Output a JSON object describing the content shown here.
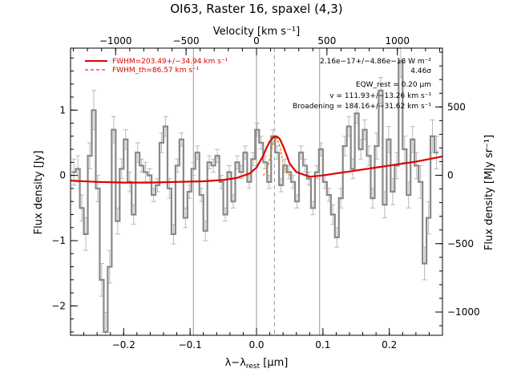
{
  "chart_data": {
    "type": "line",
    "title": "OI63, Raster 16, spaxel (4,3)",
    "xlabel": "λ−λ_rest [μm]",
    "xlabel_main": "λ−λ",
    "xlabel_sub": "rest",
    "xlabel_unit": " [μm]",
    "ylabel": "Flux density [Jy]",
    "x2label": "Velocity [km s⁻¹]",
    "y2label": "Flux density [MJy sr⁻¹]",
    "xlim": [
      -0.28,
      0.28
    ],
    "ylim": [
      -2.45,
      1.95
    ],
    "x2lim": [
      -1320,
      1320
    ],
    "y2lim": [
      -1170,
      930
    ],
    "xticks": [
      -0.2,
      -0.1,
      0.0,
      0.1,
      0.2
    ],
    "xtick_labels": [
      "−0.2",
      "−0.1",
      "0.0",
      "0.1",
      "0.2"
    ],
    "yticks": [
      -2,
      -1,
      0,
      1
    ],
    "ytick_labels": [
      "−2",
      "−1",
      "0",
      "1"
    ],
    "x2ticks": [
      -1000,
      -500,
      0,
      500,
      1000
    ],
    "x2tick_labels": [
      "−1000",
      "−500",
      "0",
      "500",
      "1000"
    ],
    "y2ticks": [
      -1000,
      -500,
      0,
      500
    ],
    "y2tick_labels": [
      "−1000",
      "−500",
      "0",
      "500"
    ],
    "vlines_solid": [
      -0.095,
      0.0,
      0.095
    ],
    "vline_dashed": 0.027,
    "legend": {
      "position": "top-left",
      "entries": [
        {
          "label": "FWHM=203.49+/−34.94 km s⁻¹",
          "color": "#dd0000",
          "style": "solid"
        },
        {
          "label": "FWHM_th=86.57 km s⁻¹",
          "color": "#dd0000",
          "style": "dashed"
        }
      ]
    },
    "annotations": [
      "2.16e−17+/−4.86e−18 W m⁻²",
      "4.46σ",
      "EQW_rest = 0.20 μm",
      "v = 111.93+/−13.26 km s⁻¹",
      "Broadening = 184.16+/−31.62 km s⁻¹"
    ],
    "series": [
      {
        "style": "steps",
        "color": "#888888",
        "x": [
          -0.275,
          -0.269,
          -0.263,
          -0.257,
          -0.251,
          -0.245,
          -0.239,
          -0.233,
          -0.227,
          -0.221,
          -0.215,
          -0.209,
          -0.203,
          -0.197,
          -0.191,
          -0.185,
          -0.179,
          -0.173,
          -0.167,
          -0.161,
          -0.155,
          -0.149,
          -0.143,
          -0.137,
          -0.131,
          -0.125,
          -0.119,
          -0.113,
          -0.107,
          -0.101,
          -0.095,
          -0.089,
          -0.083,
          -0.077,
          -0.071,
          -0.065,
          -0.059,
          -0.053,
          -0.047,
          -0.041,
          -0.035,
          -0.029,
          -0.023,
          -0.017,
          -0.011,
          -0.005,
          0.001,
          0.007,
          0.013,
          0.019,
          0.025,
          0.031,
          0.037,
          0.043,
          0.049,
          0.055,
          0.061,
          0.067,
          0.073,
          0.079,
          0.085,
          0.091,
          0.097,
          0.103,
          0.109,
          0.115,
          0.121,
          0.127,
          0.133,
          0.139,
          0.145,
          0.151,
          0.157,
          0.163,
          0.169,
          0.175,
          0.181,
          0.187,
          0.193,
          0.199,
          0.205,
          0.211,
          0.217,
          0.223,
          0.229,
          0.235,
          0.241,
          0.247,
          0.253,
          0.259,
          0.265,
          0.271
        ],
        "values": [
          0.05,
          0.1,
          -0.5,
          -0.9,
          0.3,
          1.0,
          -0.2,
          -1.6,
          -2.4,
          -1.4,
          0.7,
          -0.7,
          0.1,
          0.55,
          -0.1,
          -0.6,
          0.35,
          0.15,
          0.05,
          0.0,
          -0.3,
          -0.15,
          0.5,
          0.75,
          -0.2,
          -0.9,
          0.15,
          0.55,
          -0.65,
          -0.25,
          0.1,
          0.35,
          -0.3,
          -0.85,
          0.2,
          0.15,
          0.3,
          -0.1,
          -0.6,
          0.05,
          -0.4,
          0.2,
          0.05,
          0.35,
          -0.1,
          0.25,
          0.7,
          0.5,
          0.2,
          -0.1,
          0.6,
          0.35,
          -0.15,
          0.15,
          0.05,
          -0.1,
          -0.4,
          0.35,
          0.15,
          -0.05,
          -0.5,
          0.05,
          0.4,
          -0.1,
          -0.3,
          -0.6,
          -0.95,
          -0.35,
          0.45,
          0.75,
          0.1,
          0.95,
          0.4,
          0.7,
          0.3,
          -0.35,
          0.45,
          1.3,
          -0.45,
          0.55,
          -0.25,
          0.15,
          1.75,
          0.4,
          -0.3,
          0.55,
          0.15,
          -0.1,
          -1.35,
          -0.65,
          0.6,
          0.35
        ],
        "errors": [
          0.2,
          0.2,
          0.2,
          0.25,
          0.2,
          0.3,
          0.2,
          0.25,
          0.3,
          0.25,
          0.2,
          0.2,
          0.15,
          0.15,
          0.15,
          0.15,
          0.15,
          0.1,
          0.15,
          0.1,
          0.1,
          0.1,
          0.15,
          0.15,
          0.15,
          0.15,
          0.1,
          0.1,
          0.15,
          0.1,
          0.1,
          0.1,
          0.1,
          0.15,
          0.1,
          0.1,
          0.1,
          0.1,
          0.1,
          0.1,
          0.1,
          0.1,
          0.1,
          0.1,
          0.1,
          0.1,
          0.1,
          0.1,
          0.1,
          0.1,
          0.1,
          0.1,
          0.1,
          0.1,
          0.1,
          0.1,
          0.1,
          0.1,
          0.1,
          0.1,
          0.1,
          0.1,
          0.1,
          0.1,
          0.1,
          0.15,
          0.15,
          0.15,
          0.15,
          0.15,
          0.15,
          0.15,
          0.15,
          0.15,
          0.15,
          0.15,
          0.2,
          0.2,
          0.2,
          0.2,
          0.2,
          0.2,
          0.25,
          0.2,
          0.2,
          0.2,
          0.2,
          0.25,
          0.25,
          0.25,
          0.25,
          0.25
        ]
      },
      {
        "style": "line",
        "color": "#dd0000",
        "name": "FWHM=203.49+/−34.94 km s⁻¹",
        "x": [
          -0.28,
          -0.24,
          -0.2,
          -0.16,
          -0.12,
          -0.08,
          -0.05,
          -0.03,
          -0.01,
          0.0,
          0.01,
          0.015,
          0.02,
          0.025,
          0.03,
          0.035,
          0.04,
          0.045,
          0.05,
          0.06,
          0.08,
          0.1,
          0.12,
          0.14,
          0.16,
          0.18,
          0.2,
          0.22,
          0.24,
          0.26,
          0.28
        ],
        "values": [
          -0.08,
          -0.1,
          -0.11,
          -0.11,
          -0.1,
          -0.09,
          -0.07,
          -0.04,
          0.03,
          0.12,
          0.3,
          0.42,
          0.52,
          0.58,
          0.6,
          0.56,
          0.45,
          0.32,
          0.18,
          0.05,
          -0.02,
          0.0,
          0.03,
          0.06,
          0.09,
          0.12,
          0.15,
          0.18,
          0.21,
          0.25,
          0.29
        ]
      },
      {
        "style": "dashed",
        "color": "#e07000",
        "name": "FWHM_th=86.57 km s⁻¹",
        "x": [
          0.01,
          0.015,
          0.02,
          0.025,
          0.03,
          0.035,
          0.04,
          0.045,
          0.05
        ],
        "values": [
          0.0,
          0.05,
          0.25,
          0.5,
          0.58,
          0.45,
          0.2,
          0.04,
          0.0
        ]
      }
    ]
  }
}
